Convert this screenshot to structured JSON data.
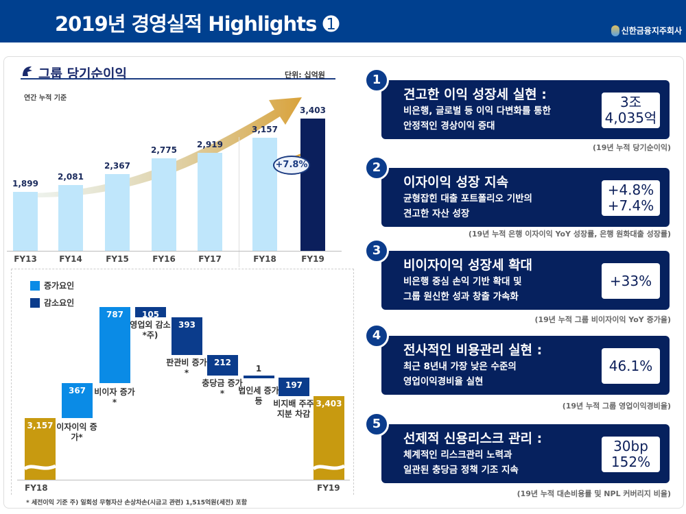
{
  "header": {
    "title": "2019년 경영실적 Highlights ➊",
    "company": "신한금융지주회사"
  },
  "left": {
    "title": "그룹 당기순이익",
    "unit": "단위: 십억원",
    "basis": "연간 누적 기준",
    "growth_label": "+7.8%",
    "legend": {
      "increase": "증가요인",
      "decrease": "감소요인"
    },
    "footnote": "* 세전이익 기준   주) 일회성 무형자산 손상차손(시금고 관련) 1,515억원(세전) 포함"
  },
  "chart_data": [
    {
      "type": "bar",
      "title": "그룹 당기순이익",
      "categories": [
        "FY13",
        "FY14",
        "FY15",
        "FY16",
        "FY17",
        "FY18",
        "FY19"
      ],
      "values": [
        1899,
        2081,
        2367,
        2775,
        2919,
        3157,
        3403
      ],
      "labels": [
        "1,899",
        "2,081",
        "2,367",
        "2,775",
        "2,919",
        "3,157",
        "3,403"
      ],
      "highlight": "FY19",
      "colors": {
        "bar": "#bfe6fb",
        "highlight": "#0b1f5c"
      }
    },
    {
      "type": "waterfall",
      "categories": [
        "FY18",
        "이자이익 증가*",
        "비이자 증가*",
        "영업외 감소*주)",
        "판관비 증가*",
        "충당금 증가*",
        "법인세 증가 등",
        "비지배 주주지분 차감",
        "FY19"
      ],
      "steps": [
        {
          "kind": "total",
          "value": 3157,
          "label": "3,157"
        },
        {
          "kind": "increase",
          "value": 367,
          "label": "367"
        },
        {
          "kind": "increase",
          "value": 787,
          "label": "787"
        },
        {
          "kind": "decrease",
          "value": 105,
          "label": "105"
        },
        {
          "kind": "decrease",
          "value": 393,
          "label": "393"
        },
        {
          "kind": "decrease",
          "value": 212,
          "label": "212"
        },
        {
          "kind": "decrease",
          "value": 1,
          "label": "1"
        },
        {
          "kind": "decrease",
          "value": 197,
          "label": "197"
        },
        {
          "kind": "total",
          "value": 3403,
          "label": "3,403"
        }
      ],
      "colors": {
        "total": "#c89a10",
        "increase": "#0a8be6",
        "decrease": "#0b3c8c"
      }
    }
  ],
  "cards": [
    {
      "num": "1",
      "title": "견고한 이익 성장세 실현 :",
      "sub1": "비은행, 글로벌 등 이익 다변화를 통한",
      "sub2": "안정적인 경상이익 증대",
      "v1": "3조",
      "v2": "4,035억",
      "note": "(19년 누적 당기순이익)"
    },
    {
      "num": "2",
      "title": "이자이익 성장 지속",
      "sub1": "균형잡힌 대출 포트폴리오 기반의",
      "sub2": "견고한 자산 성장",
      "v1": "+4.8%",
      "v2": "+7.4%",
      "note": "(19년 누적 은행 이자이익 YoY 성장률, 은행 원화대출 성장률)"
    },
    {
      "num": "3",
      "title": "비이자이익 성장세 확대",
      "sub1": "비은행 중심 손익 기반 확대 및",
      "sub2": "그룹 원신한 성과 창출 가속화",
      "v1": "+33%",
      "v2": "",
      "note": "(19년 누적 그룹 비이자이익 YoY 증가율)"
    },
    {
      "num": "4",
      "title": "전사적인 비용관리 실현 :",
      "sub1": "최근 8년내 가장 낮은 수준의",
      "sub2": "영업이익경비율 실현",
      "v1": "46.1%",
      "v2": "",
      "note": "(19년 누적 그룹 영업이익경비율)"
    },
    {
      "num": "5",
      "title": "선제적 신용리스크 관리 :",
      "sub1": "체계적인 리스크관리 노력과",
      "sub2": "일관된 충당금 정책 기조 지속",
      "v1": "30bp",
      "v2": "152%",
      "note": "(19년 누적 대손비용률 및 NPL 커버리지 비율)"
    }
  ]
}
